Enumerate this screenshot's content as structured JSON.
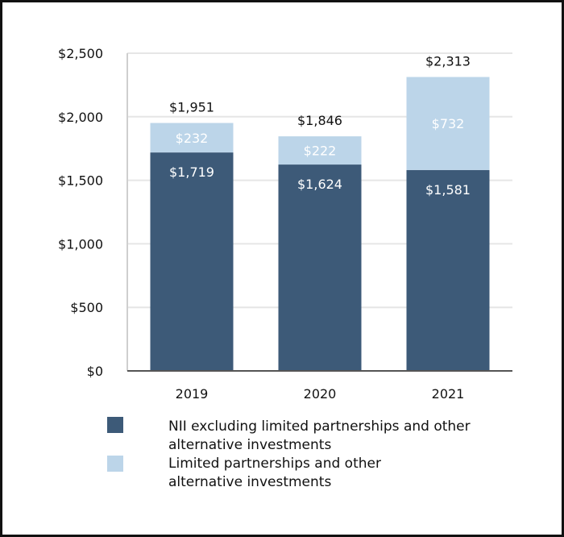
{
  "chart_data": {
    "type": "bar",
    "stacked": true,
    "categories": [
      "2019",
      "2020",
      "2021"
    ],
    "series": [
      {
        "name": "NII excluding limited partnerships and other alternative investments",
        "values": [
          1719,
          1624,
          1581
        ],
        "labels": [
          "$1,719",
          "$1,624",
          "$1,581"
        ],
        "color": "#3d5a78"
      },
      {
        "name": "Limited partnerships and other alternative investments",
        "values": [
          232,
          222,
          732
        ],
        "labels": [
          "$232",
          "$222",
          "$732"
        ],
        "color": "#bcd5e9"
      }
    ],
    "totals": [
      1951,
      1846,
      2313
    ],
    "total_labels": [
      "$1,951",
      "$1,846",
      "$2,313"
    ],
    "ylim": [
      0,
      2500
    ],
    "yticks": [
      0,
      500,
      1000,
      1500,
      2000,
      2500
    ],
    "ytick_labels": [
      "$0",
      "$500",
      "$1,000",
      "$1,500",
      "$2,000",
      "$2,500"
    ],
    "grid": true,
    "legend_position": "bottom",
    "legend_lines": [
      [
        "NII excluding limited partnerships and other",
        "alternative investments"
      ],
      [
        "Limited partnerships and other",
        "alternative investments"
      ]
    ]
  }
}
